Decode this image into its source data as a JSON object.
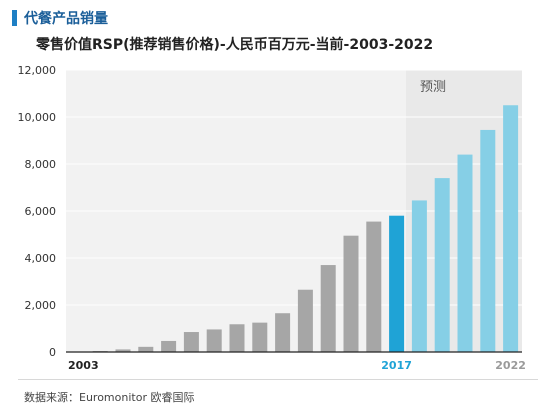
{
  "heading": "代餐产品销量",
  "subtitle": "零售价值RSP(推荐销售价格)-人民币百万元-当前-2003-2022",
  "source": "数据来源：Euromonitor 欧睿国际",
  "chart_data": {
    "type": "bar",
    "categories": [
      "2003",
      "2004",
      "2005",
      "2006",
      "2007",
      "2008",
      "2009",
      "2010",
      "2011",
      "2012",
      "2013",
      "2014",
      "2015",
      "2016",
      "2017",
      "2018",
      "2019",
      "2020",
      "2021",
      "2022"
    ],
    "values": [
      0,
      30,
      110,
      220,
      470,
      850,
      960,
      1180,
      1250,
      1650,
      2650,
      3700,
      4950,
      5550,
      5800,
      6450,
      7400,
      8400,
      9450,
      10500
    ],
    "segments": [
      "historical",
      "historical",
      "historical",
      "historical",
      "historical",
      "historical",
      "historical",
      "historical",
      "historical",
      "historical",
      "historical",
      "historical",
      "historical",
      "historical",
      "current",
      "forecast",
      "forecast",
      "forecast",
      "forecast",
      "forecast"
    ],
    "x_tick_labels": [
      {
        "index": 0,
        "label": "2003"
      },
      {
        "index": 14,
        "label": "2017"
      },
      {
        "index": 19,
        "label": "2022"
      }
    ],
    "y_ticks": [
      0,
      2000,
      4000,
      6000,
      8000,
      10000,
      12000
    ],
    "y_tick_labels": [
      "0",
      "2,000",
      "4,000",
      "6,000",
      "8,000",
      "10,000",
      "12,000"
    ],
    "ylim": [
      0,
      12000
    ],
    "forecast_label": "预测",
    "forecast_start_index": 15,
    "colors": {
      "historical": "#a6a6a6",
      "current": "#1fa3d6",
      "forecast": "#86cfe6",
      "forecast_bg": "#e9e9e9",
      "plot_bg": "#f2f2f2",
      "axis_label_2017": "#1fa3d6",
      "axis_label_2022": "#9a9a9a"
    },
    "grid": true
  }
}
